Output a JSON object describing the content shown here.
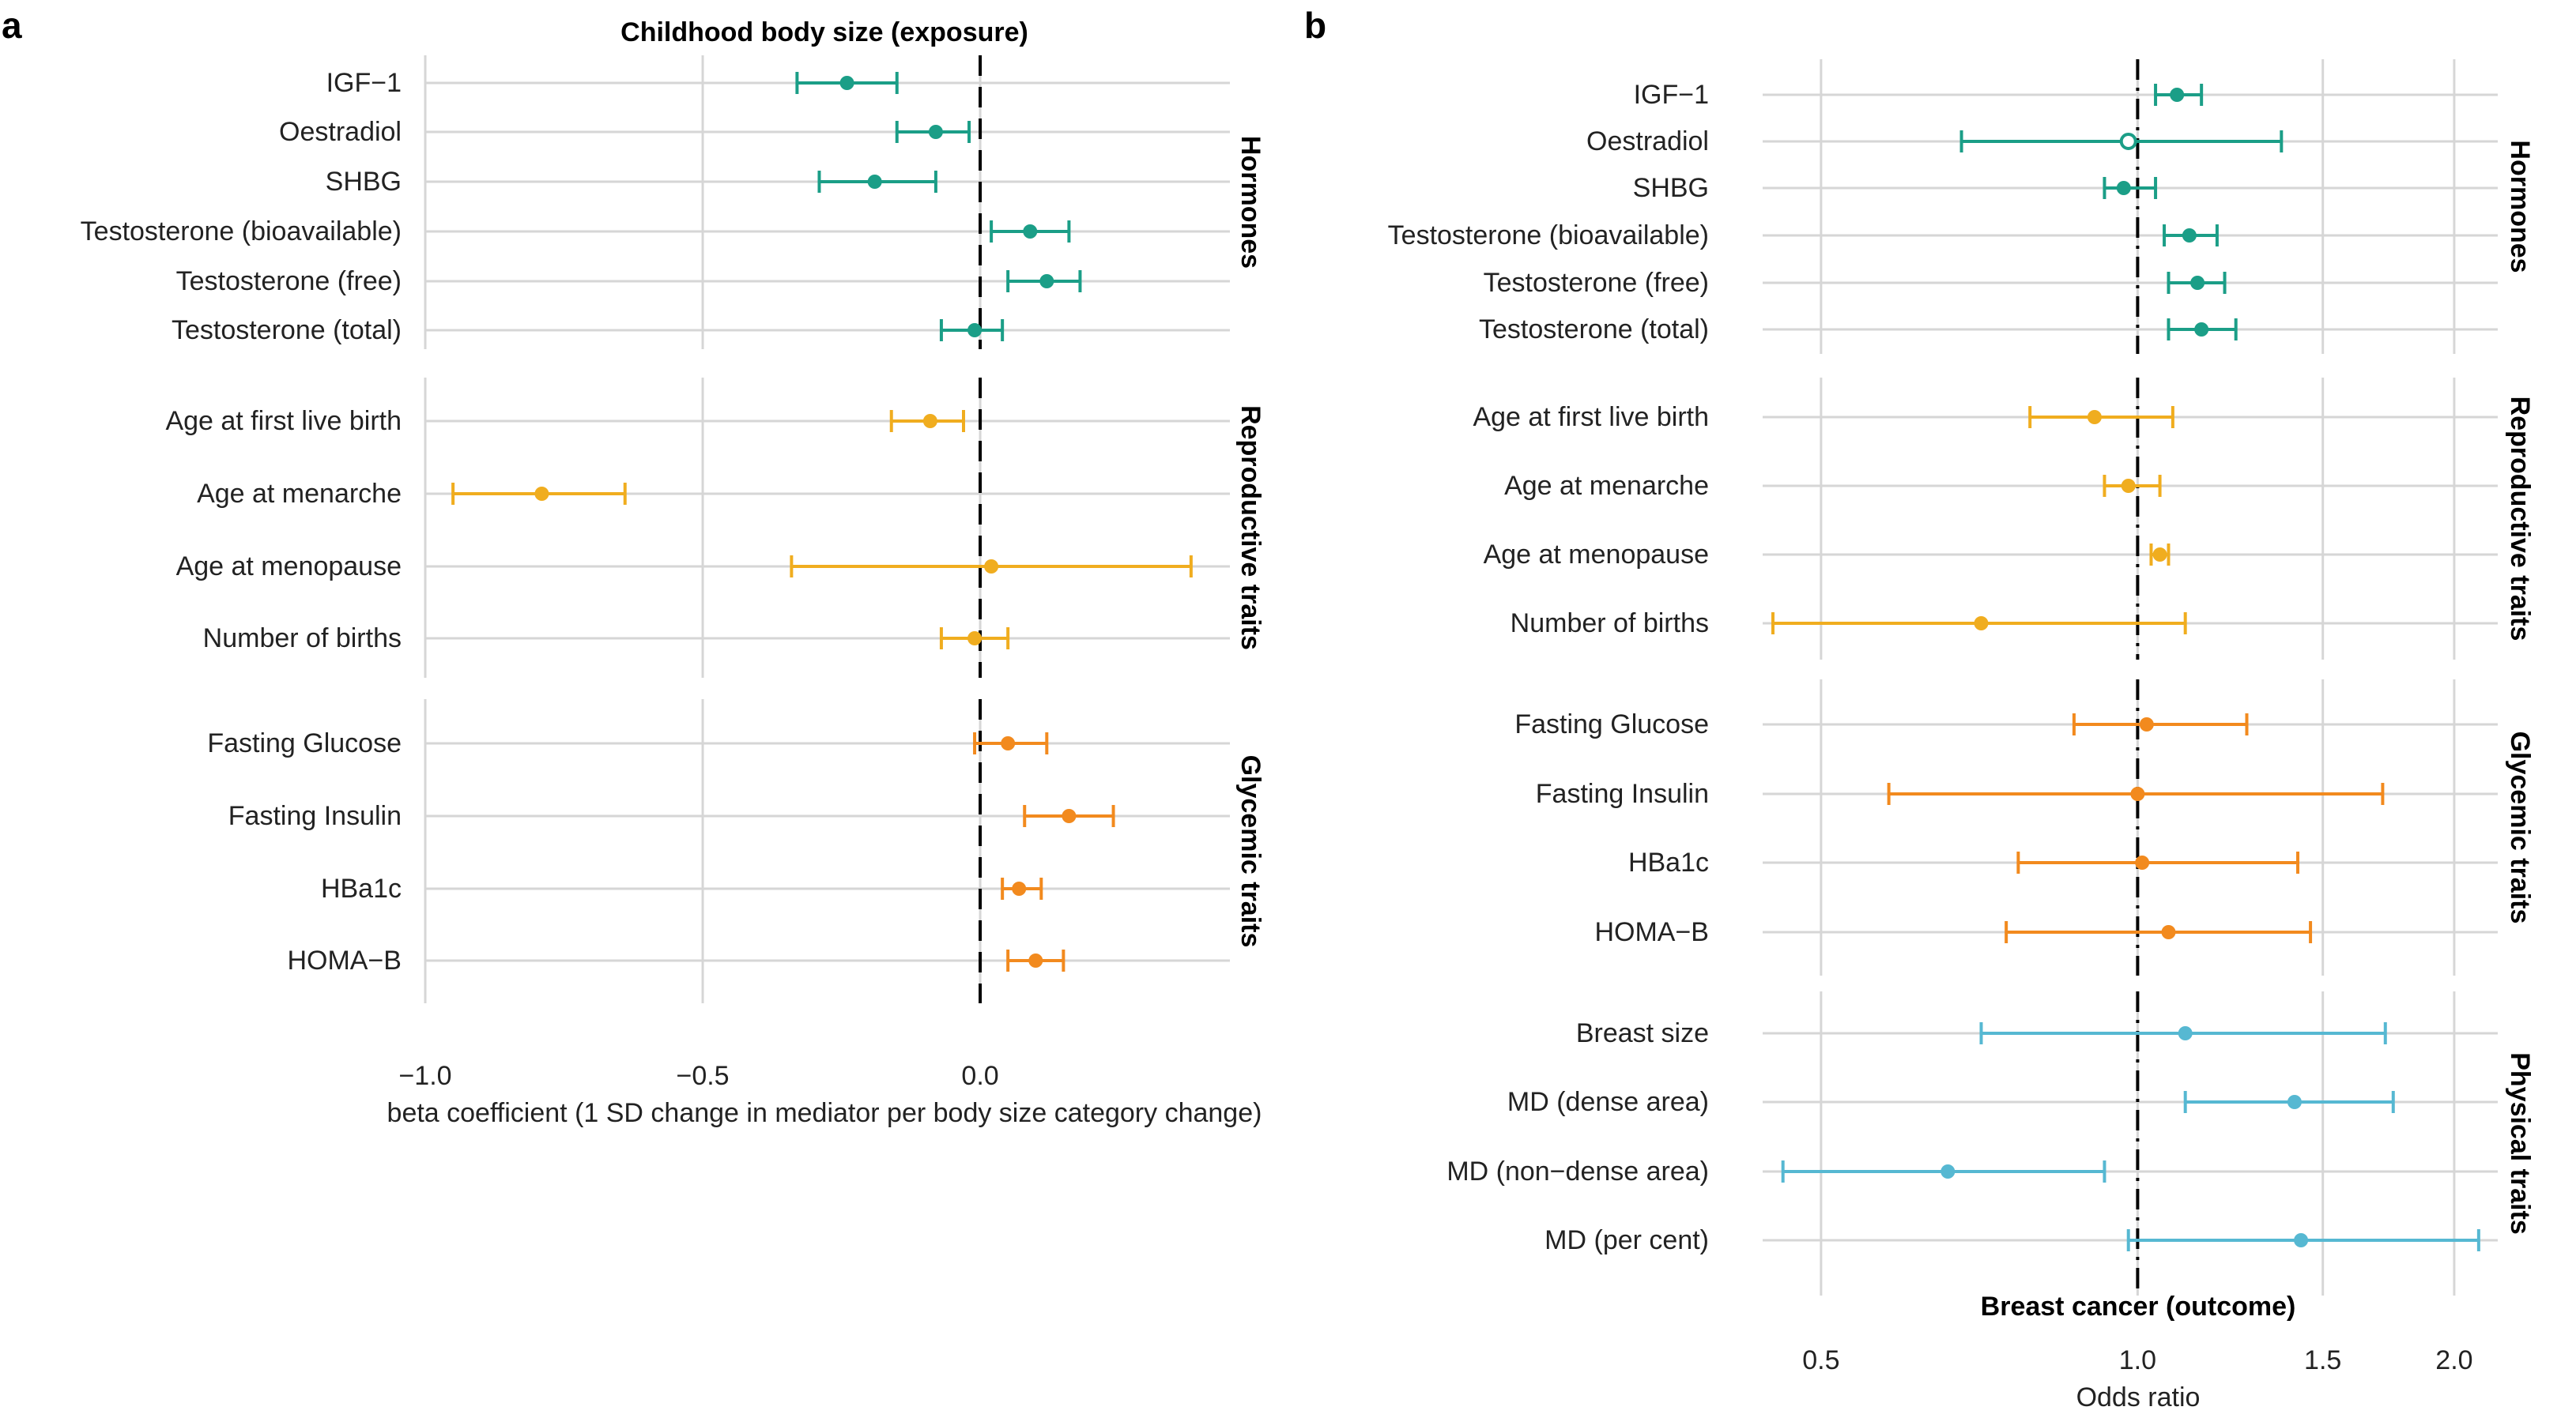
{
  "chart_data": [
    {
      "panel": "a",
      "type": "scatter",
      "title": "Childhood body size (exposure)",
      "xlabel": "beta coefficient (1 SD change in mediator per body size category change)",
      "ylabel": "",
      "xlim": [
        -1.0,
        0.45
      ],
      "xscale": "linear",
      "xticks": [
        -1.0,
        -0.5,
        0.0
      ],
      "xtick_labels": [
        "−1.0",
        "−0.5",
        "0.0"
      ],
      "reference_line": 0.0,
      "groups": [
        {
          "name": "Hormones",
          "color": "#1b9e87",
          "items": [
            {
              "label": "IGF−1",
              "est": -0.24,
              "lo": -0.33,
              "hi": -0.15
            },
            {
              "label": "Oestradiol",
              "est": -0.08,
              "lo": -0.15,
              "hi": -0.02
            },
            {
              "label": "SHBG",
              "est": -0.19,
              "lo": -0.29,
              "hi": -0.08
            },
            {
              "label": "Testosterone (bioavailable)",
              "est": 0.09,
              "lo": 0.02,
              "hi": 0.16
            },
            {
              "label": "Testosterone (free)",
              "est": 0.12,
              "lo": 0.05,
              "hi": 0.18
            },
            {
              "label": "Testosterone (total)",
              "est": -0.01,
              "lo": -0.07,
              "hi": 0.04
            }
          ]
        },
        {
          "name": "Reproductive traits",
          "color": "#f0ad1f",
          "items": [
            {
              "label": "Age at first live birth",
              "est": -0.09,
              "lo": -0.16,
              "hi": -0.03
            },
            {
              "label": "Age at menarche",
              "est": -0.79,
              "lo": -0.95,
              "hi": -0.64
            },
            {
              "label": "Age at menopause",
              "est": 0.02,
              "lo": -0.34,
              "hi": 0.38
            },
            {
              "label": "Number of births",
              "est": -0.01,
              "lo": -0.07,
              "hi": 0.05
            }
          ]
        },
        {
          "name": "Glycemic traits",
          "color": "#f28a1e",
          "items": [
            {
              "label": "Fasting Glucose",
              "est": 0.05,
              "lo": -0.01,
              "hi": 0.12
            },
            {
              "label": "Fasting Insulin",
              "est": 0.16,
              "lo": 0.08,
              "hi": 0.24
            },
            {
              "label": "HBa1c",
              "est": 0.07,
              "lo": 0.04,
              "hi": 0.11
            },
            {
              "label": "HOMA−B",
              "est": 0.1,
              "lo": 0.05,
              "hi": 0.15
            }
          ]
        }
      ]
    },
    {
      "panel": "b",
      "type": "scatter",
      "title": "Breast cancer (outcome)",
      "xlabel": "Odds ratio",
      "ylabel": "",
      "xlim": [
        0.44,
        2.2
      ],
      "xscale": "log",
      "xticks": [
        0.5,
        1.0,
        1.5,
        2.0
      ],
      "xtick_labels": [
        "0.5",
        "1.0",
        "1.5",
        "2.0"
      ],
      "reference_line": 1.0,
      "groups": [
        {
          "name": "Hormones",
          "color": "#1b9e87",
          "items": [
            {
              "label": "IGF−1",
              "est": 1.09,
              "lo": 1.04,
              "hi": 1.15
            },
            {
              "label": "Oestradiol",
              "est": 0.98,
              "lo": 0.68,
              "hi": 1.37,
              "open": true
            },
            {
              "label": "SHBG",
              "est": 0.97,
              "lo": 0.93,
              "hi": 1.04
            },
            {
              "label": "Testosterone (bioavailable)",
              "est": 1.12,
              "lo": 1.06,
              "hi": 1.19
            },
            {
              "label": "Testosterone (free)",
              "est": 1.14,
              "lo": 1.07,
              "hi": 1.21
            },
            {
              "label": "Testosterone (total)",
              "est": 1.15,
              "lo": 1.07,
              "hi": 1.24
            }
          ]
        },
        {
          "name": "Reproductive traits",
          "color": "#f0ad1f",
          "items": [
            {
              "label": "Age at first live birth",
              "est": 0.91,
              "lo": 0.79,
              "hi": 1.08
            },
            {
              "label": "Age at menarche",
              "est": 0.98,
              "lo": 0.93,
              "hi": 1.05
            },
            {
              "label": "Age at menopause",
              "est": 1.05,
              "lo": 1.03,
              "hi": 1.07
            },
            {
              "label": "Number of births",
              "est": 0.71,
              "lo": 0.45,
              "hi": 1.11
            }
          ]
        },
        {
          "name": "Glycemic traits",
          "color": "#f28a1e",
          "items": [
            {
              "label": "Fasting Glucose",
              "est": 1.02,
              "lo": 0.87,
              "hi": 1.27
            },
            {
              "label": "Fasting Insulin",
              "est": 1.0,
              "lo": 0.58,
              "hi": 1.71
            },
            {
              "label": "HBa1c",
              "est": 1.01,
              "lo": 0.77,
              "hi": 1.42
            },
            {
              "label": "HOMA−B",
              "est": 1.07,
              "lo": 0.75,
              "hi": 1.46
            }
          ]
        },
        {
          "name": "Physical traits",
          "color": "#56b8d2",
          "items": [
            {
              "label": "Breast size",
              "est": 1.11,
              "lo": 0.71,
              "hi": 1.72
            },
            {
              "label": "MD (dense area)",
              "est": 1.41,
              "lo": 1.11,
              "hi": 1.75
            },
            {
              "label": "MD (non−dense area)",
              "est": 0.66,
              "lo": 0.46,
              "hi": 0.93
            },
            {
              "label": "MD (per cent)",
              "est": 1.43,
              "lo": 0.98,
              "hi": 2.11
            }
          ]
        }
      ]
    }
  ]
}
